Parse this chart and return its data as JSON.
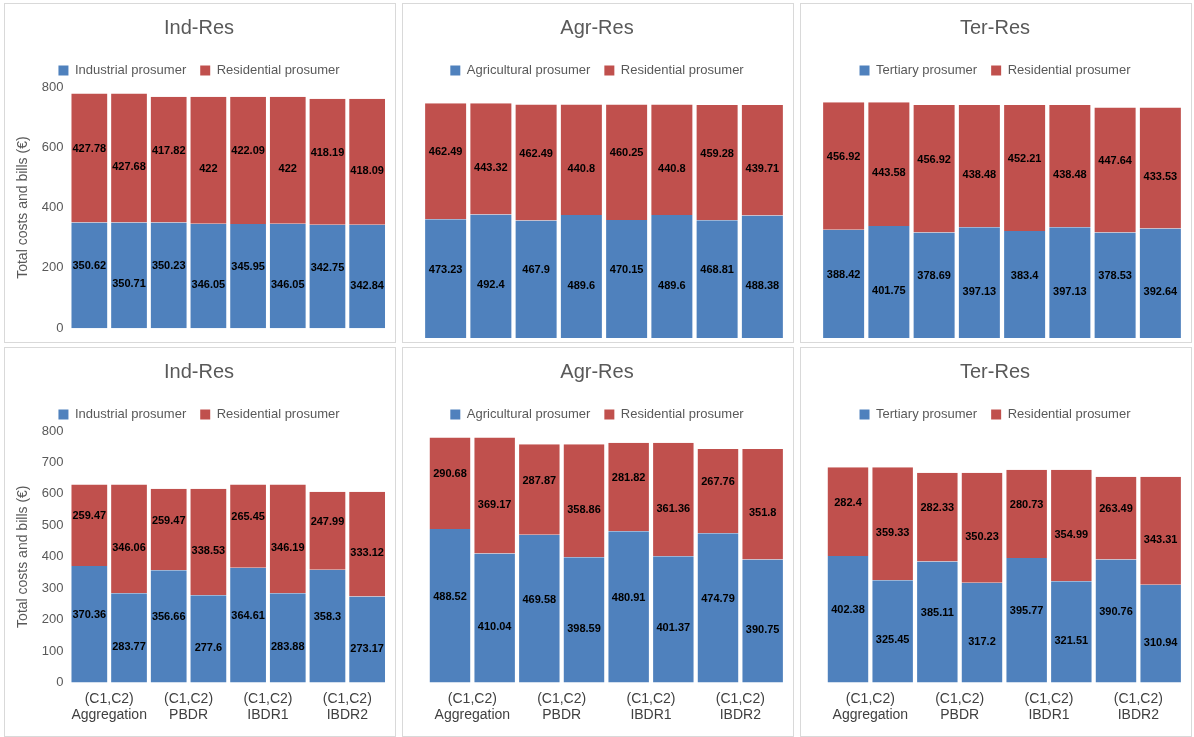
{
  "chart_data": [
    {
      "type": "bar",
      "title": "Ind-Res",
      "ylabel": "Total costs and bills (€)",
      "categories": [
        null,
        null,
        null,
        null,
        null,
        null,
        null,
        null
      ],
      "stacked": true,
      "ylim": [
        0,
        800
      ],
      "yticks": [
        0,
        200,
        400,
        600,
        800
      ],
      "tick_labels": "y",
      "legend": "top",
      "data_labels": true,
      "series": [
        {
          "name": "Industrial prosumer",
          "color": "#4f81bd",
          "values": [
            350.62,
            350.71,
            350.23,
            346.05,
            345.95,
            346.05,
            342.75,
            342.84
          ]
        },
        {
          "name": "Residential prosumer",
          "color": "#c0504d",
          "values": [
            427.78,
            427.68,
            417.82,
            422,
            422.09,
            422,
            418.19,
            418.09
          ]
        }
      ]
    },
    {
      "type": "bar",
      "title": "Agr-Res",
      "categories": [
        null,
        null,
        null,
        null,
        null,
        null,
        null,
        null
      ],
      "stacked": true,
      "tick_labels": false,
      "legend": "top",
      "data_labels": true,
      "series": [
        {
          "name": "Agricultural prosumer",
          "color": "#4f81bd",
          "values": [
            473.23,
            492.4,
            467.9,
            489.6,
            470.15,
            489.6,
            468.81,
            488.38
          ]
        },
        {
          "name": "Residential prosumer",
          "color": "#c0504d",
          "values": [
            462.49,
            443.32,
            462.49,
            440.8,
            460.25,
            440.8,
            459.28,
            439.71
          ]
        }
      ]
    },
    {
      "type": "bar",
      "title": "Ter-Res",
      "categories": [
        null,
        null,
        null,
        null,
        null,
        null,
        null,
        null
      ],
      "stacked": true,
      "tick_labels": false,
      "legend": "top",
      "data_labels": true,
      "series": [
        {
          "name": "Tertiary prosumer",
          "color": "#4f81bd",
          "values": [
            388.42,
            401.75,
            378.69,
            397.13,
            383.4,
            397.13,
            378.53,
            392.64
          ]
        },
        {
          "name": "Residential prosumer",
          "color": "#c0504d",
          "values": [
            456.92,
            443.58,
            456.92,
            438.48,
            452.21,
            438.48,
            447.64,
            433.53
          ]
        }
      ]
    },
    {
      "type": "bar",
      "title": "Ind-Res",
      "ylabel": "Total costs and bills (€)",
      "categories": [
        "(C1,C2)\nAggregation",
        null,
        "(C1,C2)\nPBDR",
        null,
        "(C1,C2)\nIBDR1",
        null,
        "(C1,C2)\nIBDR2",
        null
      ],
      "stacked": true,
      "ylim": [
        0,
        800
      ],
      "yticks": [
        0,
        100,
        200,
        300,
        400,
        500,
        600,
        700,
        800
      ],
      "legend": "top",
      "data_labels": true,
      "series": [
        {
          "name": "Industrial prosumer",
          "color": "#4f81bd",
          "values": [
            370.36,
            283.77,
            356.66,
            277.6,
            364.61,
            283.88,
            358.3,
            273.17
          ]
        },
        {
          "name": "Residential prosumer",
          "color": "#c0504d",
          "values": [
            259.47,
            346.06,
            259.47,
            338.53,
            265.45,
            346.19,
            247.99,
            333.12
          ]
        }
      ]
    },
    {
      "type": "bar",
      "title": "Agr-Res",
      "categories": [
        "(C1,C2)\nAggregation",
        null,
        "(C1,C2)\nPBDR",
        null,
        "(C1,C2)\nIBDR1",
        null,
        "(C1,C2)\nIBDR2",
        null
      ],
      "stacked": true,
      "ylim": [
        0,
        800
      ],
      "tick_labels": "x",
      "legend": "top",
      "data_labels": true,
      "series": [
        {
          "name": "Agricultural prosumer",
          "color": "#4f81bd",
          "values": [
            488.52,
            410.04,
            469.58,
            398.59,
            480.91,
            401.37,
            474.79,
            390.75
          ]
        },
        {
          "name": "Residential prosumer",
          "color": "#c0504d",
          "values": [
            290.68,
            369.17,
            287.87,
            358.86,
            281.82,
            361.36,
            267.76,
            351.8
          ]
        }
      ]
    },
    {
      "type": "bar",
      "title": "Ter-Res",
      "categories": [
        "(C1,C2)\nAggregation",
        null,
        "(C1,C2)\nPBDR",
        null,
        "(C1,C2)\nIBDR1",
        null,
        "(C1,C2)\nIBDR2",
        null
      ],
      "stacked": true,
      "ylim": [
        0,
        800
      ],
      "tick_labels": "x",
      "legend": "top",
      "data_labels": true,
      "series": [
        {
          "name": "Tertiary prosumer",
          "color": "#4f81bd",
          "values": [
            402.38,
            325.45,
            385.11,
            317.2,
            395.77,
            321.51,
            390.76,
            310.94
          ]
        },
        {
          "name": "Residential prosumer",
          "color": "#c0504d",
          "values": [
            282.4,
            359.33,
            282.33,
            350.23,
            280.73,
            354.99,
            263.49,
            343.31
          ]
        }
      ]
    }
  ]
}
